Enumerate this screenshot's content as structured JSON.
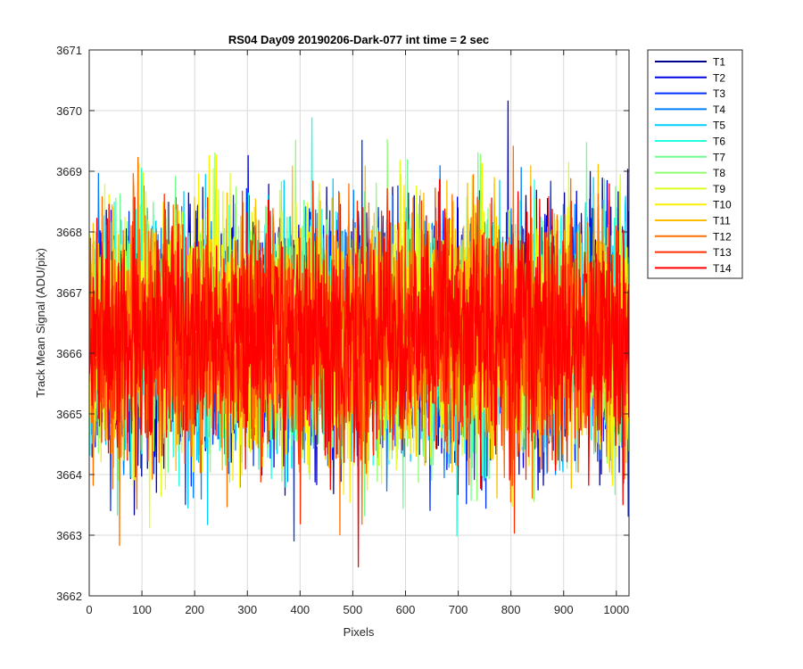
{
  "chart_data": {
    "type": "line",
    "title": "RS04 Day09 20190206-Dark-077 int time = 2 sec",
    "xlabel": "Pixels",
    "ylabel": "Track Mean Signal (ADU/pix)",
    "xlim": [
      0,
      1024
    ],
    "ylim": [
      3662,
      3671
    ],
    "xticks": [
      0,
      100,
      200,
      300,
      400,
      500,
      600,
      700,
      800,
      900,
      1000
    ],
    "yticks": [
      3662,
      3663,
      3664,
      3665,
      3666,
      3667,
      3668,
      3669,
      3670,
      3671
    ],
    "grid": true,
    "legend_position": "outside-top-right",
    "points_per_series": 1024,
    "series": [
      {
        "name": "T1",
        "color": "#00008f",
        "mean": 3666.3,
        "noise_sd": 0.95
      },
      {
        "name": "T2",
        "color": "#0000df",
        "mean": 3666.3,
        "noise_sd": 0.95
      },
      {
        "name": "T3",
        "color": "#0030ff",
        "mean": 3666.3,
        "noise_sd": 0.95
      },
      {
        "name": "T4",
        "color": "#0080ff",
        "mean": 3666.3,
        "noise_sd": 0.95
      },
      {
        "name": "T5",
        "color": "#00cfff",
        "mean": 3666.3,
        "noise_sd": 0.95
      },
      {
        "name": "T6",
        "color": "#20ffdf",
        "mean": 3666.3,
        "noise_sd": 0.95
      },
      {
        "name": "T7",
        "color": "#70ff8f",
        "mean": 3666.3,
        "noise_sd": 0.95
      },
      {
        "name": "T8",
        "color": "#8fff70",
        "mean": 3666.3,
        "noise_sd": 0.95
      },
      {
        "name": "T9",
        "color": "#dfff20",
        "mean": 3666.3,
        "noise_sd": 0.95
      },
      {
        "name": "T10",
        "color": "#ffef00",
        "mean": 3666.3,
        "noise_sd": 0.95
      },
      {
        "name": "T11",
        "color": "#ffbf00",
        "mean": 3666.3,
        "noise_sd": 0.95
      },
      {
        "name": "T12",
        "color": "#ff7000",
        "mean": 3666.3,
        "noise_sd": 0.95
      },
      {
        "name": "T13",
        "color": "#ff3000",
        "mean": 3666.3,
        "noise_sd": 0.95
      },
      {
        "name": "T14",
        "color": "#ff0000",
        "mean": 3666.3,
        "noise_sd": 0.95
      }
    ]
  }
}
